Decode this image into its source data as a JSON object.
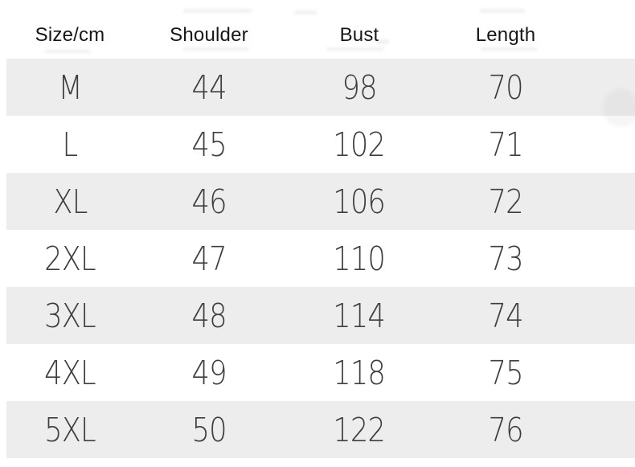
{
  "chart_data": {
    "type": "table",
    "columns": [
      "Size/cm",
      "Shoulder",
      "Bust",
      "Length"
    ],
    "rows": [
      [
        "M",
        "44",
        "98",
        "70"
      ],
      [
        "L",
        "45",
        "102",
        "71"
      ],
      [
        "XL",
        "46",
        "106",
        "72"
      ],
      [
        "2XL",
        "47",
        "110",
        "73"
      ],
      [
        "3XL",
        "48",
        "114",
        "74"
      ],
      [
        "4XL",
        "49",
        "118",
        "75"
      ],
      [
        "5XL",
        "50",
        "122",
        "76"
      ]
    ],
    "layout": {
      "striped_rows": "odd rows shaded starting with first data row (M)",
      "grid": "off",
      "units": "cm"
    }
  },
  "table": {
    "columns": [
      "Size/cm",
      "Shoulder",
      "Bust",
      "Length"
    ],
    "rows": [
      {
        "size": "M",
        "shoulder": "44",
        "bust": "98",
        "length": "70"
      },
      {
        "size": "L",
        "shoulder": "45",
        "bust": "102",
        "length": "71"
      },
      {
        "size": "XL",
        "shoulder": "46",
        "bust": "106",
        "length": "72"
      },
      {
        "size": "2XL",
        "shoulder": "47",
        "bust": "110",
        "length": "73"
      },
      {
        "size": "3XL",
        "shoulder": "48",
        "bust": "114",
        "length": "74"
      },
      {
        "size": "4XL",
        "shoulder": "49",
        "bust": "118",
        "length": "75"
      },
      {
        "size": "5XL",
        "shoulder": "50",
        "bust": "122",
        "length": "76"
      }
    ]
  },
  "colors": {
    "background": "#ffffff",
    "row_shaded": "#ededed",
    "header_text": "#161616",
    "value_text": "#3e3e3e"
  }
}
